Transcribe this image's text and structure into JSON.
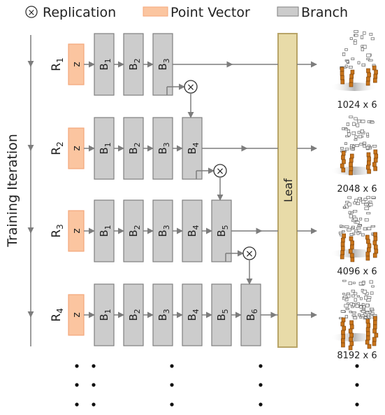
{
  "legend": {
    "replication": "Replication",
    "point_vector": "Point Vector",
    "branch": "Branch"
  },
  "axis_label": "Training Iteration",
  "leaf_label": "Leaf",
  "z_label": "z",
  "replication_symbol": "×",
  "colors": {
    "point_vector_fill": "#fbc5a0",
    "point_vector_stroke": "#f4a77a",
    "branch_fill": "#cccccc",
    "branch_stroke": "#7f7f7f",
    "leaf_fill": "#e8dba8",
    "leaf_stroke": "#b8a467",
    "line": "#7d7d7d",
    "chair_leg": "#c8741a"
  },
  "rows": [
    {
      "name": "R",
      "sub": "1",
      "branches": [
        {
          "b": "B",
          "s": "1"
        },
        {
          "b": "B",
          "s": "2"
        },
        {
          "b": "B",
          "s": "3"
        }
      ],
      "output": "1024 x 6"
    },
    {
      "name": "R",
      "sub": "2",
      "branches": [
        {
          "b": "B",
          "s": "1"
        },
        {
          "b": "B",
          "s": "2"
        },
        {
          "b": "B",
          "s": "3"
        },
        {
          "b": "B",
          "s": "4"
        }
      ],
      "output": "2048 x 6"
    },
    {
      "name": "R",
      "sub": "3",
      "branches": [
        {
          "b": "B",
          "s": "1"
        },
        {
          "b": "B",
          "s": "2"
        },
        {
          "b": "B",
          "s": "3"
        },
        {
          "b": "B",
          "s": "4"
        },
        {
          "b": "B",
          "s": "5"
        }
      ],
      "output": "4096 x 6"
    },
    {
      "name": "R",
      "sub": "4",
      "branches": [
        {
          "b": "B",
          "s": "1"
        },
        {
          "b": "B",
          "s": "2"
        },
        {
          "b": "B",
          "s": "3"
        },
        {
          "b": "B",
          "s": "4"
        },
        {
          "b": "B",
          "s": "5"
        },
        {
          "b": "B",
          "s": "6"
        }
      ],
      "output": "8192 x 6"
    }
  ],
  "ellipsis_columns": [
    "row-label",
    "branch-1",
    "branch-3",
    "branch-6",
    "output"
  ]
}
